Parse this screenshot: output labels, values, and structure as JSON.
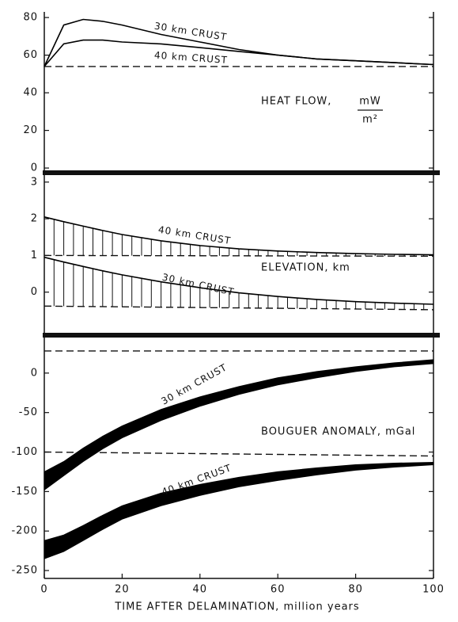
{
  "chart_data": [
    {
      "type": "line",
      "title": "HEAT FLOW,",
      "unit": {
        "numerator": "mW",
        "denominator": "m²"
      },
      "xlim": [
        0,
        100
      ],
      "ylim": [
        -2.5,
        83
      ],
      "yticks": [
        0,
        20,
        40,
        60,
        80
      ],
      "x": [
        0,
        5,
        10,
        15,
        20,
        30,
        40,
        50,
        60,
        70,
        80,
        90,
        100
      ],
      "series": [
        {
          "name": "30 km CRUST",
          "color": "#000000",
          "values": [
            54,
            76,
            79,
            78,
            76,
            71,
            67,
            63,
            60,
            58,
            57,
            56,
            55
          ]
        },
        {
          "name": "40 km CRUST",
          "color": "#000000",
          "values": [
            54,
            66,
            68,
            68,
            67,
            66,
            64,
            62,
            60,
            58,
            57,
            56,
            55
          ]
        }
      ],
      "reference_lines": [
        {
          "x": [
            0,
            100
          ],
          "values": [
            54,
            54
          ]
        }
      ]
    },
    {
      "type": "hatched-line",
      "title": "ELEVATION, km",
      "xlim": [
        0,
        100
      ],
      "ylim": [
        -1.13,
        3.19
      ],
      "yticks": [
        0,
        1,
        2,
        3
      ],
      "x": [
        0,
        5,
        10,
        15,
        20,
        30,
        40,
        50,
        60,
        70,
        80,
        90,
        100
      ],
      "series": [
        {
          "name": "40 km CRUST",
          "color": "#000000",
          "values": [
            2.05,
            1.92,
            1.8,
            1.68,
            1.57,
            1.4,
            1.27,
            1.18,
            1.12,
            1.08,
            1.05,
            1.03,
            1.02
          ]
        },
        {
          "name": "30 km CRUST",
          "color": "#000000",
          "values": [
            0.95,
            0.82,
            0.7,
            0.58,
            0.47,
            0.28,
            0.12,
            -0.02,
            -0.12,
            -0.2,
            -0.26,
            -0.3,
            -0.33
          ]
        }
      ],
      "reference_lines": [
        {
          "x": [
            0,
            100
          ],
          "values": [
            1.0,
            0.98
          ]
        },
        {
          "x": [
            0,
            100
          ],
          "values": [
            -0.38,
            -0.48
          ]
        }
      ]
    },
    {
      "type": "band",
      "title": "BOUGUER ANOMALY, mGal",
      "xlabel": "TIME AFTER DELAMINATION, million years",
      "xlim": [
        0,
        100
      ],
      "xticks": [
        0,
        20,
        40,
        60,
        80,
        100
      ],
      "ylim": [
        -260,
        45
      ],
      "yticks": [
        0,
        -50,
        -100,
        -150,
        -200,
        -250
      ],
      "x": [
        0,
        5,
        10,
        15,
        20,
        30,
        40,
        50,
        60,
        70,
        80,
        90,
        100
      ],
      "series": [
        {
          "name": "30 km CRUST",
          "color": "#000000",
          "upper": [
            -125,
            -112,
            -95,
            -80,
            -67,
            -46,
            -30,
            -17,
            -6,
            2,
            8,
            13,
            17
          ],
          "lower": [
            -148,
            -130,
            -112,
            -96,
            -82,
            -60,
            -42,
            -27,
            -15,
            -6,
            2,
            8,
            12
          ]
        },
        {
          "name": "40 km CRUST",
          "color": "#000000",
          "upper": [
            -212,
            -205,
            -193,
            -180,
            -168,
            -152,
            -141,
            -132,
            -125,
            -120,
            -116,
            -114,
            -113
          ],
          "lower": [
            -235,
            -226,
            -212,
            -198,
            -185,
            -168,
            -155,
            -144,
            -136,
            -129,
            -123,
            -119,
            -116
          ]
        }
      ],
      "reference_lines": [
        {
          "x": [
            0,
            100
          ],
          "values": [
            28,
            28
          ]
        },
        {
          "x": [
            0,
            100
          ],
          "values": [
            -100,
            -105
          ]
        }
      ]
    }
  ]
}
